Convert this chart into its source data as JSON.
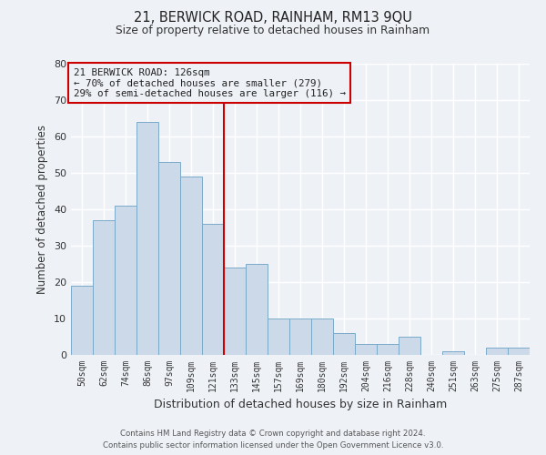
{
  "title_line1": "21, BERWICK ROAD, RAINHAM, RM13 9QU",
  "title_line2": "Size of property relative to detached houses in Rainham",
  "xlabel": "Distribution of detached houses by size in Rainham",
  "ylabel": "Number of detached properties",
  "categories": [
    "50sqm",
    "62sqm",
    "74sqm",
    "86sqm",
    "97sqm",
    "109sqm",
    "121sqm",
    "133sqm",
    "145sqm",
    "157sqm",
    "169sqm",
    "180sqm",
    "192sqm",
    "204sqm",
    "216sqm",
    "228sqm",
    "240sqm",
    "251sqm",
    "263sqm",
    "275sqm",
    "287sqm"
  ],
  "values": [
    19,
    37,
    41,
    64,
    53,
    49,
    36,
    24,
    25,
    10,
    10,
    10,
    6,
    3,
    3,
    5,
    0,
    1,
    0,
    2,
    2
  ],
  "bar_color": "#ccd9e8",
  "bar_edge_color": "#7aaac8",
  "background_color": "#eef2f7",
  "grid_color": "#ffffff",
  "ylim": [
    0,
    80
  ],
  "yticks": [
    0,
    10,
    20,
    30,
    40,
    50,
    60,
    70,
    80
  ],
  "property_line_color": "#cc0000",
  "annotation_box_color": "#cc0000",
  "annotation_box_text_line1": "21 BERWICK ROAD: 126sqm",
  "annotation_box_text_line2": "← 70% of detached houses are smaller (279)",
  "annotation_box_text_line3": "29% of semi-detached houses are larger (116) →",
  "footer_line1": "Contains HM Land Registry data © Crown copyright and database right 2024.",
  "footer_line2": "Contains public sector information licensed under the Open Government Licence v3.0."
}
